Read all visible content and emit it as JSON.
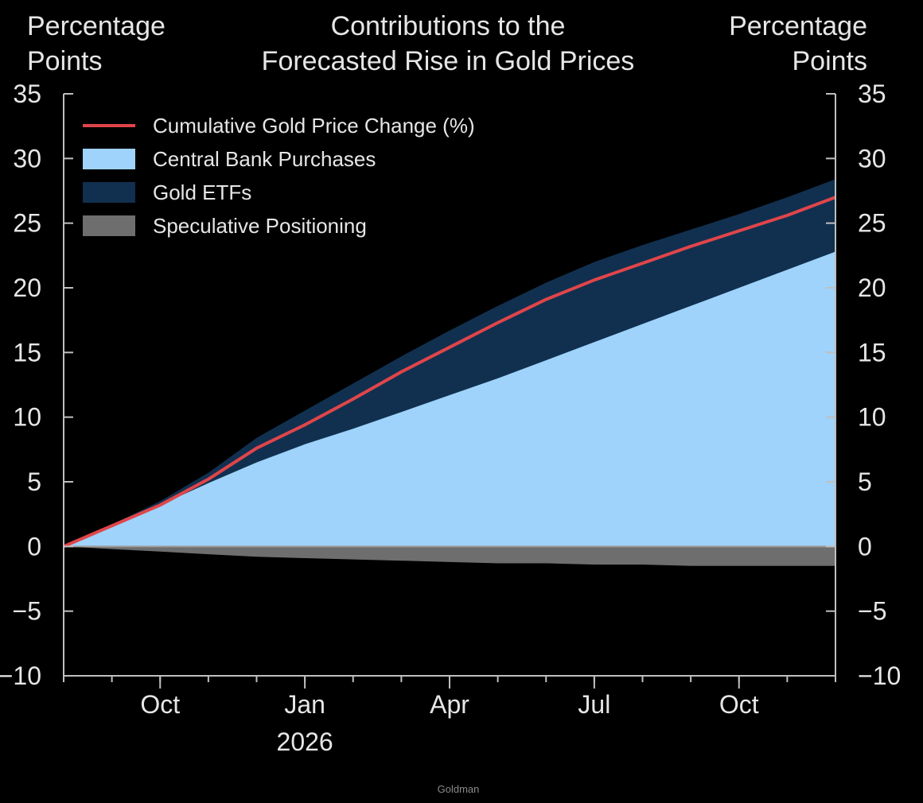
{
  "source_label": "Goldman",
  "chart_data": {
    "type": "area",
    "title": [
      "Contributions to the",
      "Forecasted Rise in Gold Prices"
    ],
    "ylabel_left": [
      "Percentage",
      "Points"
    ],
    "ylabel_right": [
      "Percentage",
      "Points"
    ],
    "ylim": [
      -10,
      35
    ],
    "yticks": [
      35,
      30,
      25,
      20,
      15,
      10,
      5,
      0,
      -5,
      -10
    ],
    "ytick_labels": [
      "35",
      "30",
      "25",
      "20",
      "15",
      "10",
      "5",
      "0",
      "−5",
      "−10"
    ],
    "xlim": [
      "2025-08",
      "2026-12"
    ],
    "xtick_labels": [
      {
        "label": "Oct",
        "sublabel": "",
        "date": "2025-10"
      },
      {
        "label": "Jan",
        "sublabel": "2026",
        "date": "2026-01"
      },
      {
        "label": "Apr",
        "sublabel": "",
        "date": "2026-04"
      },
      {
        "label": "Jul",
        "sublabel": "",
        "date": "2026-07"
      },
      {
        "label": "Oct",
        "sublabel": "",
        "date": "2026-10"
      }
    ],
    "x": [
      "2025-08",
      "2025-09",
      "2025-10",
      "2025-11",
      "2025-12",
      "2026-01",
      "2026-02",
      "2026-03",
      "2026-04",
      "2026-05",
      "2026-06",
      "2026-07",
      "2026-08",
      "2026-09",
      "2026-10",
      "2026-11",
      "2026-12"
    ],
    "series": [
      {
        "name": "Central Bank Purchases",
        "kind": "area",
        "color": "#9fd3fb",
        "values": [
          0,
          1.6,
          3.2,
          4.9,
          6.5,
          7.9,
          9.1,
          10.4,
          11.7,
          13.0,
          14.4,
          15.8,
          17.2,
          18.6,
          20.0,
          21.4,
          22.8
        ]
      },
      {
        "name": "Gold ETFs",
        "kind": "area",
        "color": "#11304f",
        "values": [
          0,
          0.1,
          0.3,
          0.8,
          1.9,
          2.6,
          3.5,
          4.3,
          5.0,
          5.6,
          6.0,
          6.2,
          6.1,
          5.9,
          5.7,
          5.6,
          5.6
        ]
      },
      {
        "name": "Speculative Positioning",
        "kind": "area",
        "color": "#6e6e6e",
        "values": [
          0,
          -0.2,
          -0.4,
          -0.6,
          -0.8,
          -0.9,
          -1.0,
          -1.1,
          -1.2,
          -1.3,
          -1.3,
          -1.4,
          -1.4,
          -1.5,
          -1.5,
          -1.5,
          -1.5
        ]
      },
      {
        "name": "Cumulative Gold Price Change (%)",
        "kind": "line",
        "color": "#e0454a",
        "values": [
          0,
          1.6,
          3.2,
          5.2,
          7.6,
          9.4,
          11.4,
          13.5,
          15.4,
          17.3,
          19.1,
          20.6,
          21.9,
          23.2,
          24.4,
          25.6,
          27.0
        ]
      }
    ],
    "legend": {
      "position": "top-left",
      "entries": [
        {
          "label": "Cumulative Gold Price Change (%)",
          "swatch": "line",
          "color": "#e0454a"
        },
        {
          "label": "Central Bank Purchases",
          "swatch": "box",
          "color": "#9fd3fb"
        },
        {
          "label": "Gold ETFs",
          "swatch": "box",
          "color": "#11304f"
        },
        {
          "label": "Speculative Positioning",
          "swatch": "box",
          "color": "#6e6e6e"
        }
      ]
    },
    "grid": false,
    "colors": {
      "background": "#000000",
      "axis": "#bfbfbf",
      "text": "#e6e6e6",
      "zero_line": "#9a9a9a"
    }
  }
}
